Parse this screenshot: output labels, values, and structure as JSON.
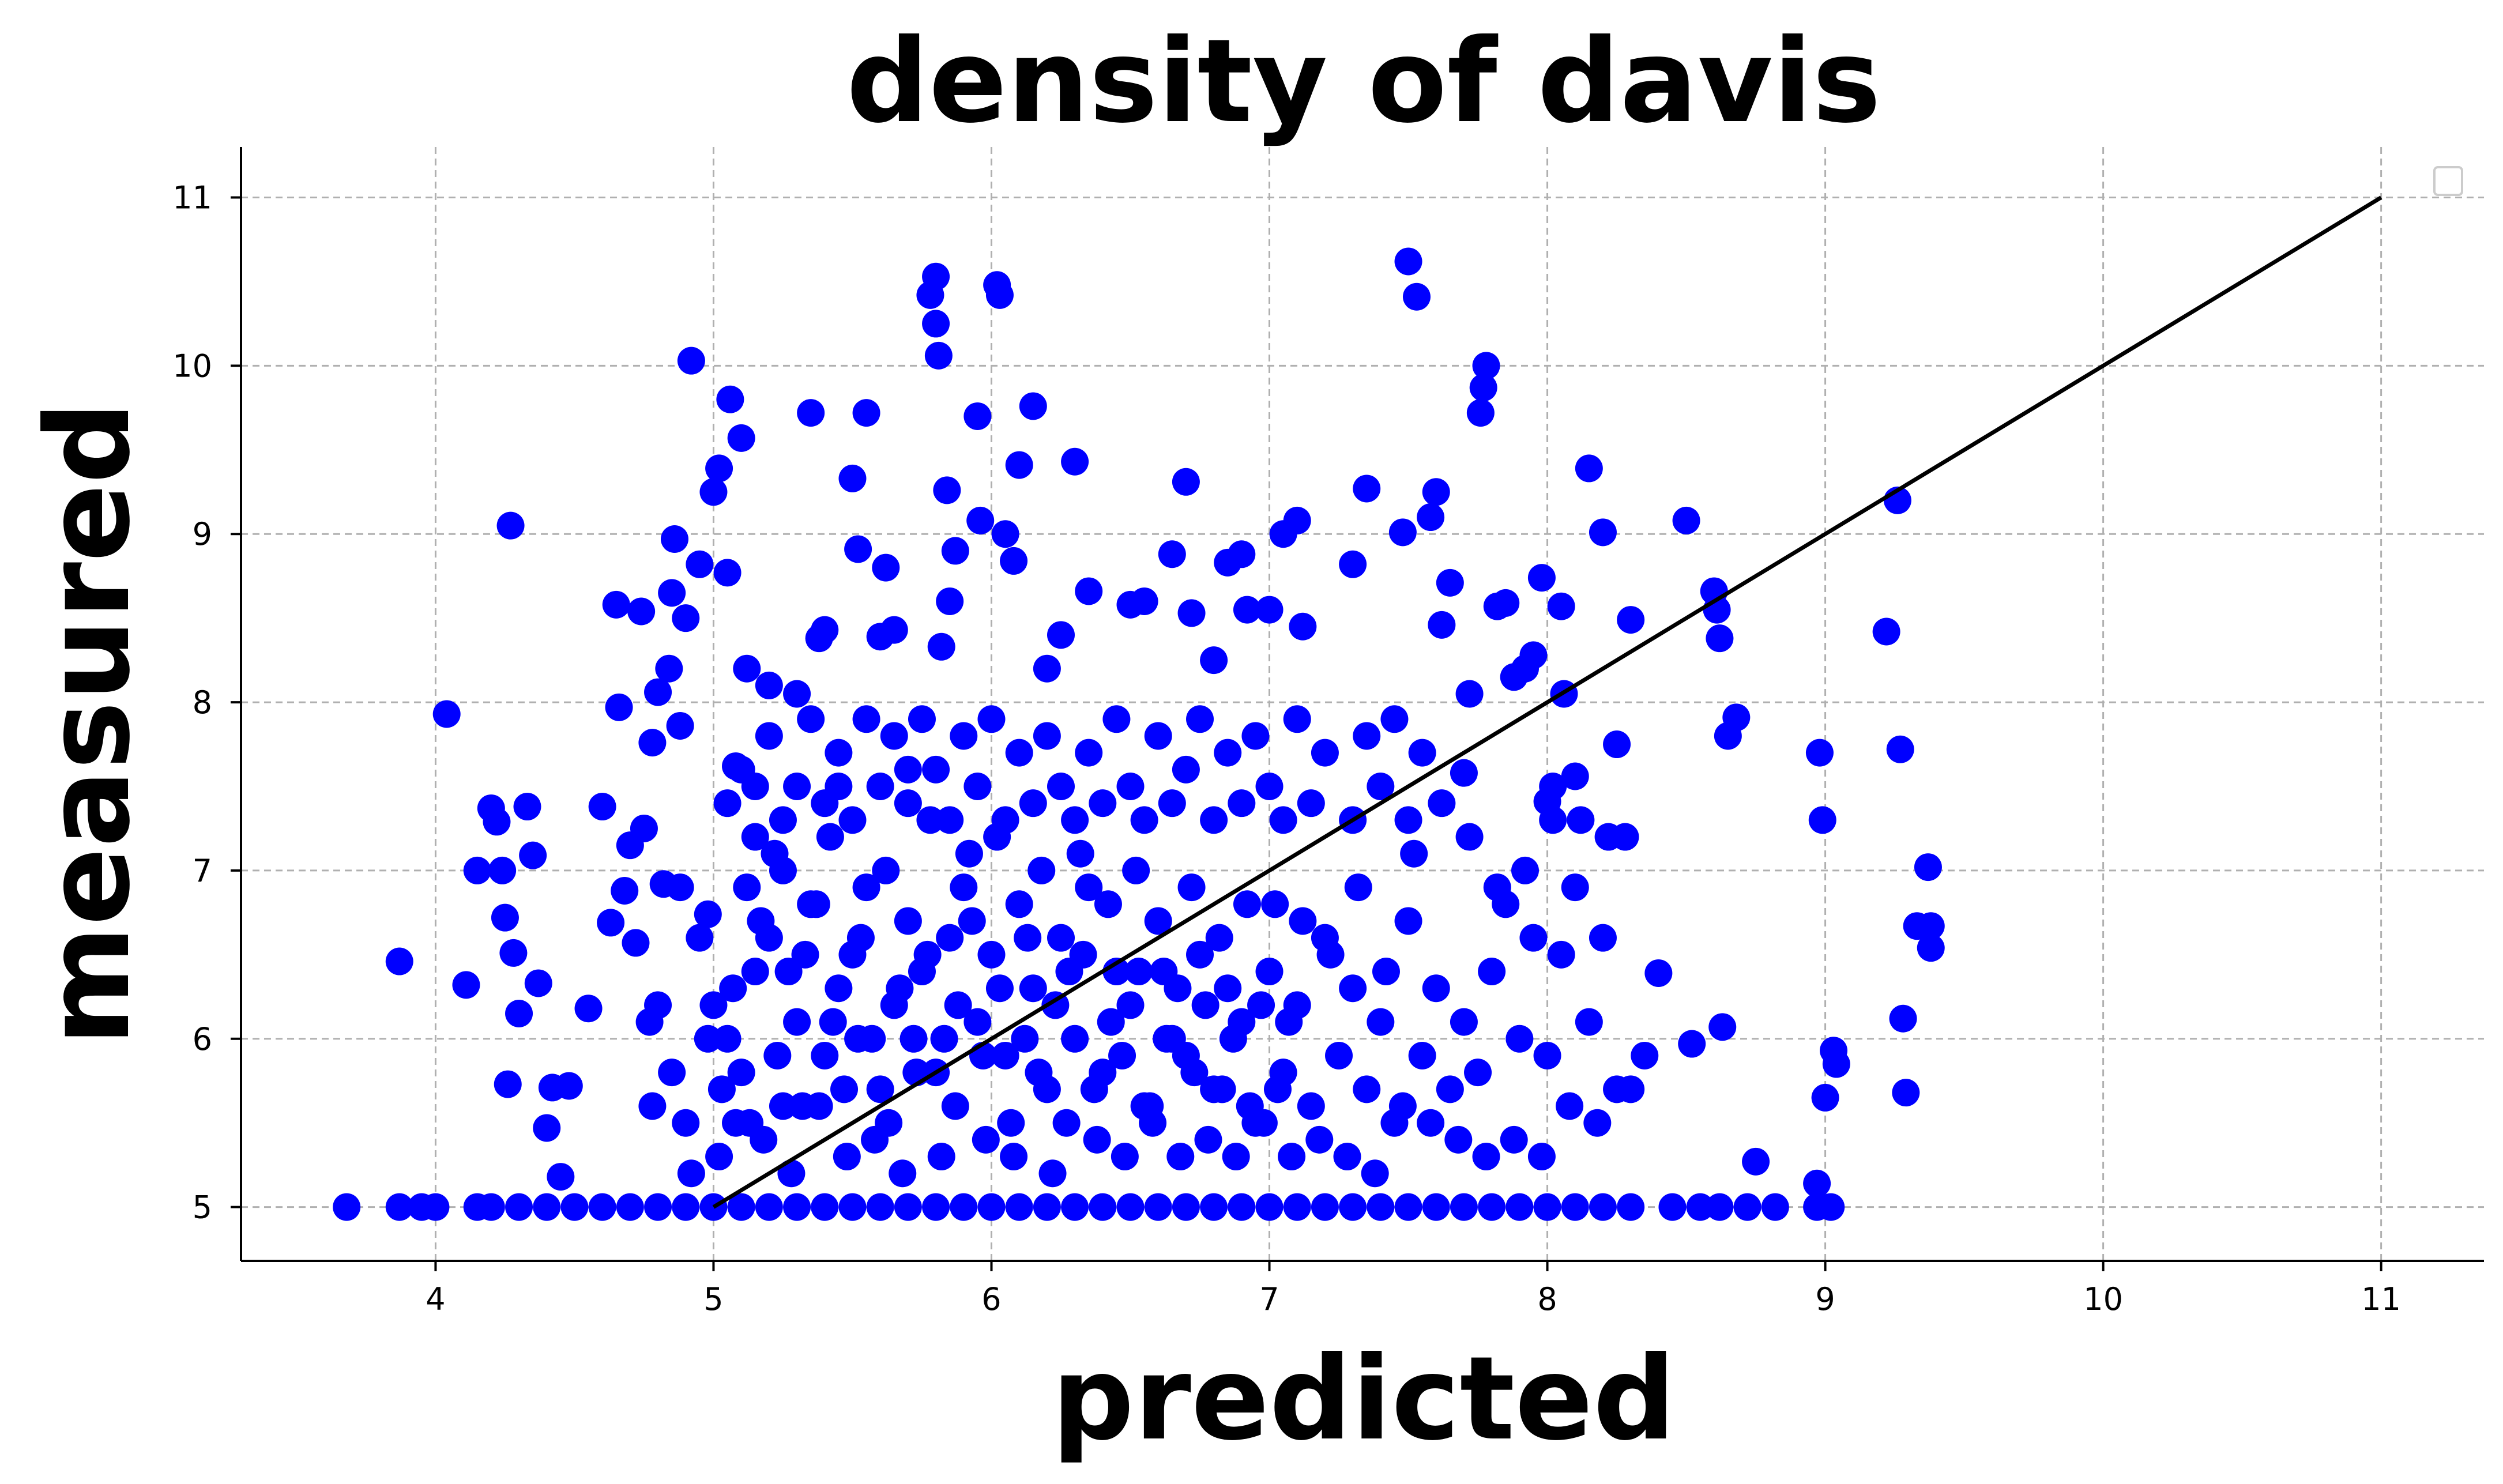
{
  "chart_data": {
    "type": "scatter",
    "title": "density of davis",
    "xlabel": "predicted",
    "ylabel": "measured",
    "xlim": [
      3.3,
      11.37
    ],
    "ylim": [
      4.68,
      11.3
    ],
    "x_ticks": [
      "4",
      "5",
      "6",
      "7",
      "8",
      "9",
      "10",
      "11"
    ],
    "y_ticks": [
      "5",
      "6",
      "7",
      "8",
      "9",
      "10",
      "11"
    ],
    "grid": true,
    "grid_style": "dashed",
    "legend": "top-right (empty)",
    "marker_color": "#0000ff",
    "line_color": "#000000",
    "reference_line": {
      "x": [
        5,
        11
      ],
      "y": [
        5,
        11
      ]
    },
    "points": [
      [
        3.68,
        5
      ],
      [
        3.87,
        5
      ],
      [
        3.95,
        5
      ],
      [
        4.0,
        5
      ],
      [
        4.15,
        5
      ],
      [
        4.2,
        5
      ],
      [
        4.3,
        5
      ],
      [
        4.4,
        5
      ],
      [
        4.5,
        5
      ],
      [
        4.6,
        5
      ],
      [
        4.7,
        5
      ],
      [
        4.8,
        5
      ],
      [
        4.9,
        5
      ],
      [
        5.0,
        5
      ],
      [
        5.1,
        5
      ],
      [
        5.2,
        5
      ],
      [
        5.3,
        5
      ],
      [
        5.4,
        5
      ],
      [
        5.5,
        5
      ],
      [
        5.6,
        5
      ],
      [
        5.7,
        5
      ],
      [
        5.8,
        5
      ],
      [
        5.9,
        5
      ],
      [
        6.0,
        5
      ],
      [
        6.1,
        5
      ],
      [
        6.2,
        5
      ],
      [
        6.3,
        5
      ],
      [
        6.4,
        5
      ],
      [
        6.5,
        5
      ],
      [
        6.6,
        5
      ],
      [
        6.7,
        5
      ],
      [
        6.8,
        5
      ],
      [
        6.9,
        5
      ],
      [
        7.0,
        5
      ],
      [
        7.1,
        5
      ],
      [
        7.2,
        5
      ],
      [
        7.3,
        5
      ],
      [
        7.4,
        5
      ],
      [
        7.5,
        5
      ],
      [
        7.6,
        5
      ],
      [
        7.7,
        5
      ],
      [
        7.8,
        5
      ],
      [
        7.9,
        5
      ],
      [
        8.0,
        5
      ],
      [
        8.1,
        5
      ],
      [
        8.2,
        5
      ],
      [
        8.3,
        5
      ],
      [
        8.45,
        5
      ],
      [
        8.55,
        5
      ],
      [
        8.62,
        5
      ],
      [
        8.72,
        5
      ],
      [
        8.82,
        5
      ],
      [
        8.97,
        5
      ],
      [
        9.02,
        5
      ],
      [
        3.87,
        6.46
      ],
      [
        4.04,
        7.93
      ],
      [
        4.11,
        6.32
      ],
      [
        4.15,
        7.0
      ],
      [
        4.2,
        7.37
      ],
      [
        4.22,
        7.29
      ],
      [
        4.24,
        7.0
      ],
      [
        4.25,
        6.72
      ],
      [
        4.26,
        5.73
      ],
      [
        4.27,
        9.05
      ],
      [
        4.28,
        6.51
      ],
      [
        4.3,
        6.15
      ],
      [
        4.33,
        7.38
      ],
      [
        4.35,
        7.09
      ],
      [
        4.37,
        6.33
      ],
      [
        4.4,
        5.47
      ],
      [
        4.42,
        5.71
      ],
      [
        4.45,
        5.18
      ],
      [
        4.48,
        5.72
      ],
      [
        4.55,
        6.18
      ],
      [
        4.6,
        7.38
      ],
      [
        4.63,
        6.69
      ],
      [
        4.65,
        8.58
      ],
      [
        4.66,
        7.97
      ],
      [
        4.68,
        6.88
      ],
      [
        4.7,
        7.15
      ],
      [
        4.72,
        6.57
      ],
      [
        4.74,
        8.54
      ],
      [
        4.75,
        7.25
      ],
      [
        4.77,
        6.1
      ],
      [
        4.78,
        7.76
      ],
      [
        4.8,
        8.06
      ],
      [
        4.82,
        6.92
      ],
      [
        4.84,
        8.2
      ],
      [
        4.85,
        8.65
      ],
      [
        4.86,
        8.97
      ],
      [
        4.88,
        7.86
      ],
      [
        4.9,
        8.5
      ],
      [
        4.92,
        10.03
      ],
      [
        4.95,
        8.82
      ],
      [
        4.98,
        6.74
      ],
      [
        5.0,
        9.25
      ],
      [
        5.02,
        9.39
      ],
      [
        5.05,
        8.77
      ],
      [
        5.06,
        9.8
      ],
      [
        5.08,
        7.62
      ],
      [
        5.1,
        9.57
      ],
      [
        5.12,
        8.2
      ],
      [
        5.15,
        7.5
      ],
      [
        5.2,
        8.1
      ],
      [
        5.25,
        7.0
      ],
      [
        5.3,
        8.05
      ],
      [
        5.35,
        9.72
      ],
      [
        5.38,
        8.38
      ],
      [
        5.4,
        8.43
      ],
      [
        5.45,
        7.5
      ],
      [
        5.5,
        9.33
      ],
      [
        5.52,
        8.91
      ],
      [
        5.55,
        9.72
      ],
      [
        5.6,
        8.39
      ],
      [
        5.62,
        8.8
      ],
      [
        5.65,
        8.43
      ],
      [
        5.7,
        7.6
      ],
      [
        5.78,
        10.42
      ],
      [
        5.8,
        10.53
      ],
      [
        5.8,
        10.25
      ],
      [
        5.81,
        10.06
      ],
      [
        5.82,
        8.33
      ],
      [
        5.84,
        9.26
      ],
      [
        5.85,
        8.6
      ],
      [
        5.87,
        8.9
      ],
      [
        5.95,
        9.7
      ],
      [
        5.96,
        9.08
      ],
      [
        6.02,
        10.48
      ],
      [
        6.03,
        10.42
      ],
      [
        6.05,
        9.0
      ],
      [
        6.08,
        8.84
      ],
      [
        6.1,
        9.41
      ],
      [
        6.15,
        9.76
      ],
      [
        6.2,
        8.2
      ],
      [
        6.25,
        8.4
      ],
      [
        6.3,
        9.43
      ],
      [
        6.35,
        8.66
      ],
      [
        6.5,
        8.58
      ],
      [
        6.55,
        8.6
      ],
      [
        6.65,
        8.88
      ],
      [
        6.7,
        9.31
      ],
      [
        6.72,
        8.53
      ],
      [
        6.8,
        8.25
      ],
      [
        6.85,
        8.83
      ],
      [
        6.9,
        8.88
      ],
      [
        6.92,
        8.55
      ],
      [
        7.0,
        8.55
      ],
      [
        7.05,
        9.0
      ],
      [
        7.1,
        9.08
      ],
      [
        7.12,
        8.45
      ],
      [
        7.3,
        8.82
      ],
      [
        7.35,
        9.27
      ],
      [
        7.48,
        9.01
      ],
      [
        7.5,
        10.62
      ],
      [
        7.53,
        10.41
      ],
      [
        7.58,
        9.1
      ],
      [
        7.6,
        9.25
      ],
      [
        7.62,
        8.46
      ],
      [
        7.65,
        8.71
      ],
      [
        7.7,
        7.58
      ],
      [
        7.72,
        8.05
      ],
      [
        7.76,
        9.72
      ],
      [
        7.77,
        9.87
      ],
      [
        7.78,
        10.0
      ],
      [
        7.82,
        8.57
      ],
      [
        7.85,
        8.59
      ],
      [
        7.88,
        8.15
      ],
      [
        7.92,
        8.2
      ],
      [
        7.95,
        8.28
      ],
      [
        7.98,
        8.74
      ],
      [
        8.0,
        7.41
      ],
      [
        8.02,
        7.3
      ],
      [
        8.05,
        8.57
      ],
      [
        8.06,
        8.05
      ],
      [
        8.1,
        7.56
      ],
      [
        8.15,
        9.39
      ],
      [
        8.2,
        9.01
      ],
      [
        8.25,
        7.75
      ],
      [
        8.3,
        8.49
      ],
      [
        8.4,
        6.39
      ],
      [
        8.5,
        9.08
      ],
      [
        8.52,
        5.97
      ],
      [
        8.6,
        8.66
      ],
      [
        8.61,
        8.55
      ],
      [
        8.62,
        8.38
      ],
      [
        8.63,
        6.07
      ],
      [
        8.65,
        7.8
      ],
      [
        8.68,
        7.91
      ],
      [
        8.75,
        5.27
      ],
      [
        8.97,
        5.14
      ],
      [
        8.98,
        7.7
      ],
      [
        8.99,
        7.3
      ],
      [
        9.0,
        5.65
      ],
      [
        9.03,
        5.93
      ],
      [
        9.04,
        5.85
      ],
      [
        9.22,
        8.42
      ],
      [
        9.26,
        9.2
      ],
      [
        9.27,
        7.72
      ],
      [
        9.28,
        6.12
      ],
      [
        9.29,
        5.68
      ],
      [
        9.33,
        6.67
      ],
      [
        9.37,
        7.02
      ],
      [
        9.38,
        6.67
      ],
      [
        9.38,
        6.54
      ],
      [
        5.0,
        6.2
      ],
      [
        5.05,
        6.0
      ],
      [
        5.1,
        5.8
      ],
      [
        5.15,
        6.4
      ],
      [
        5.2,
        6.6
      ],
      [
        5.25,
        5.6
      ],
      [
        5.3,
        6.1
      ],
      [
        5.35,
        6.8
      ],
      [
        5.4,
        5.9
      ],
      [
        5.45,
        6.3
      ],
      [
        5.5,
        6.5
      ],
      [
        5.55,
        6.9
      ],
      [
        5.6,
        5.7
      ],
      [
        5.65,
        6.2
      ],
      [
        5.7,
        6.7
      ],
      [
        5.75,
        6.4
      ],
      [
        5.8,
        5.8
      ],
      [
        5.85,
        6.6
      ],
      [
        5.9,
        6.9
      ],
      [
        5.95,
        6.1
      ],
      [
        6.0,
        6.5
      ],
      [
        6.05,
        5.9
      ],
      [
        6.1,
        6.8
      ],
      [
        6.15,
        6.3
      ],
      [
        6.2,
        5.7
      ],
      [
        6.25,
        6.6
      ],
      [
        6.3,
        6.0
      ],
      [
        6.35,
        6.9
      ],
      [
        6.4,
        5.8
      ],
      [
        6.45,
        6.4
      ],
      [
        6.5,
        6.2
      ],
      [
        6.55,
        5.6
      ],
      [
        6.6,
        6.7
      ],
      [
        6.65,
        6.0
      ],
      [
        6.7,
        5.9
      ],
      [
        6.75,
        6.5
      ],
      [
        6.8,
        5.7
      ],
      [
        6.85,
        6.3
      ],
      [
        6.9,
        6.1
      ],
      [
        6.95,
        5.5
      ],
      [
        7.0,
        6.4
      ],
      [
        7.05,
        5.8
      ],
      [
        7.1,
        6.2
      ],
      [
        7.15,
        5.6
      ],
      [
        7.2,
        6.6
      ],
      [
        7.25,
        5.9
      ],
      [
        7.3,
        6.3
      ],
      [
        7.35,
        5.7
      ],
      [
        7.4,
        6.1
      ],
      [
        7.45,
        5.5
      ],
      [
        5.02,
        5.3
      ],
      [
        5.08,
        5.5
      ],
      [
        5.12,
        6.9
      ],
      [
        5.18,
        5.4
      ],
      [
        5.22,
        7.1
      ],
      [
        5.28,
        5.2
      ],
      [
        5.33,
        6.5
      ],
      [
        5.38,
        5.6
      ],
      [
        5.42,
        7.2
      ],
      [
        5.48,
        5.3
      ],
      [
        5.52,
        6.0
      ],
      [
        5.58,
        5.4
      ],
      [
        5.62,
        7.0
      ],
      [
        5.68,
        5.2
      ],
      [
        5.72,
        6.0
      ],
      [
        5.78,
        7.3
      ],
      [
        5.82,
        5.3
      ],
      [
        5.88,
        6.2
      ],
      [
        5.92,
        7.1
      ],
      [
        5.98,
        5.4
      ],
      [
        6.02,
        7.2
      ],
      [
        6.08,
        5.3
      ],
      [
        6.12,
        6.0
      ],
      [
        6.18,
        7.0
      ],
      [
        6.22,
        5.2
      ],
      [
        6.28,
        6.4
      ],
      [
        6.32,
        7.1
      ],
      [
        6.38,
        5.4
      ],
      [
        6.42,
        6.8
      ],
      [
        6.48,
        5.3
      ],
      [
        6.52,
        7.0
      ],
      [
        6.58,
        5.5
      ],
      [
        6.62,
        6.4
      ],
      [
        6.68,
        5.3
      ],
      [
        6.72,
        6.9
      ],
      [
        6.78,
        5.4
      ],
      [
        6.82,
        6.6
      ],
      [
        6.88,
        5.3
      ],
      [
        6.92,
        6.8
      ],
      [
        6.98,
        5.5
      ],
      [
        7.02,
        6.8
      ],
      [
        7.08,
        5.3
      ],
      [
        7.12,
        6.7
      ],
      [
        7.18,
        5.4
      ],
      [
        7.22,
        6.5
      ],
      [
        7.28,
        5.3
      ],
      [
        7.32,
        6.9
      ],
      [
        7.38,
        5.2
      ],
      [
        7.42,
        6.4
      ],
      [
        7.48,
        5.6
      ],
      [
        5.05,
        7.4
      ],
      [
        5.1,
        7.6
      ],
      [
        5.15,
        7.2
      ],
      [
        5.2,
        7.8
      ],
      [
        5.25,
        7.3
      ],
      [
        5.3,
        7.5
      ],
      [
        5.35,
        7.9
      ],
      [
        5.4,
        7.4
      ],
      [
        5.45,
        7.7
      ],
      [
        5.5,
        7.3
      ],
      [
        5.55,
        7.9
      ],
      [
        5.6,
        7.5
      ],
      [
        5.65,
        7.8
      ],
      [
        5.7,
        7.4
      ],
      [
        5.75,
        7.9
      ],
      [
        5.8,
        7.6
      ],
      [
        5.85,
        7.3
      ],
      [
        5.9,
        7.8
      ],
      [
        5.95,
        7.5
      ],
      [
        6.0,
        7.9
      ],
      [
        6.05,
        7.3
      ],
      [
        6.1,
        7.7
      ],
      [
        6.15,
        7.4
      ],
      [
        6.2,
        7.8
      ],
      [
        6.25,
        7.5
      ],
      [
        6.3,
        7.3
      ],
      [
        6.35,
        7.7
      ],
      [
        6.4,
        7.4
      ],
      [
        6.45,
        7.9
      ],
      [
        6.5,
        7.5
      ],
      [
        6.55,
        7.3
      ],
      [
        6.6,
        7.8
      ],
      [
        6.65,
        7.4
      ],
      [
        6.7,
        7.6
      ],
      [
        6.75,
        7.9
      ],
      [
        6.8,
        7.3
      ],
      [
        6.85,
        7.7
      ],
      [
        6.9,
        7.4
      ],
      [
        6.95,
        7.8
      ],
      [
        7.0,
        7.5
      ],
      [
        7.05,
        7.3
      ],
      [
        7.1,
        7.9
      ],
      [
        7.15,
        7.4
      ],
      [
        7.2,
        7.7
      ],
      [
        7.3,
        7.3
      ],
      [
        7.35,
        7.8
      ],
      [
        7.4,
        7.5
      ],
      [
        7.45,
        7.9
      ],
      [
        7.5,
        7.3
      ],
      [
        7.55,
        7.7
      ],
      [
        4.9,
        5.5
      ],
      [
        4.95,
        6.6
      ],
      [
        4.85,
        5.8
      ],
      [
        4.8,
        6.2
      ],
      [
        4.78,
        5.6
      ],
      [
        4.88,
        6.9
      ],
      [
        4.92,
        5.2
      ],
      [
        4.98,
        6.0
      ],
      [
        5.03,
        5.7
      ],
      [
        5.07,
        6.3
      ],
      [
        5.13,
        5.5
      ],
      [
        5.17,
        6.7
      ],
      [
        5.23,
        5.9
      ],
      [
        5.27,
        6.4
      ],
      [
        5.32,
        5.6
      ],
      [
        5.37,
        6.8
      ],
      [
        5.43,
        6.1
      ],
      [
        5.47,
        5.7
      ],
      [
        5.53,
        6.6
      ],
      [
        5.57,
        6.0
      ],
      [
        5.63,
        5.5
      ],
      [
        5.67,
        6.3
      ],
      [
        5.73,
        5.8
      ],
      [
        5.77,
        6.5
      ],
      [
        5.83,
        6.0
      ],
      [
        5.87,
        5.6
      ],
      [
        5.93,
        6.7
      ],
      [
        5.97,
        5.9
      ],
      [
        6.03,
        6.3
      ],
      [
        6.07,
        5.5
      ],
      [
        6.13,
        6.6
      ],
      [
        6.17,
        5.8
      ],
      [
        6.23,
        6.2
      ],
      [
        6.27,
        5.5
      ],
      [
        6.33,
        6.5
      ],
      [
        6.37,
        5.7
      ],
      [
        6.43,
        6.1
      ],
      [
        6.47,
        5.9
      ],
      [
        6.53,
        6.4
      ],
      [
        6.57,
        5.6
      ],
      [
        6.63,
        6.0
      ],
      [
        6.67,
        6.3
      ],
      [
        6.73,
        5.8
      ],
      [
        6.77,
        6.2
      ],
      [
        6.83,
        5.7
      ],
      [
        6.87,
        6.0
      ],
      [
        6.93,
        5.6
      ],
      [
        6.97,
        6.2
      ],
      [
        7.03,
        5.7
      ],
      [
        7.07,
        6.1
      ],
      [
        7.5,
        6.7
      ],
      [
        7.55,
        5.9
      ],
      [
        7.6,
        6.3
      ],
      [
        7.65,
        5.7
      ],
      [
        7.7,
        6.1
      ],
      [
        7.75,
        5.8
      ],
      [
        7.8,
        6.4
      ],
      [
        7.85,
        6.8
      ],
      [
        7.9,
        6.0
      ],
      [
        7.95,
        6.6
      ],
      [
        8.0,
        5.9
      ],
      [
        8.05,
        6.5
      ],
      [
        8.1,
        6.9
      ],
      [
        8.15,
        6.1
      ],
      [
        8.2,
        6.6
      ],
      [
        8.25,
        5.7
      ],
      [
        8.3,
        5.7
      ],
      [
        8.35,
        5.9
      ],
      [
        7.52,
        7.1
      ],
      [
        7.62,
        7.4
      ],
      [
        7.72,
        7.2
      ],
      [
        7.82,
        6.9
      ],
      [
        7.92,
        7.0
      ],
      [
        8.02,
        7.5
      ],
      [
        8.12,
        7.3
      ],
      [
        8.22,
        7.2
      ],
      [
        8.28,
        7.2
      ],
      [
        7.58,
        5.5
      ],
      [
        7.68,
        5.4
      ],
      [
        7.78,
        5.3
      ],
      [
        7.88,
        5.4
      ],
      [
        7.98,
        5.3
      ],
      [
        8.08,
        5.6
      ],
      [
        8.18,
        5.5
      ]
    ]
  }
}
